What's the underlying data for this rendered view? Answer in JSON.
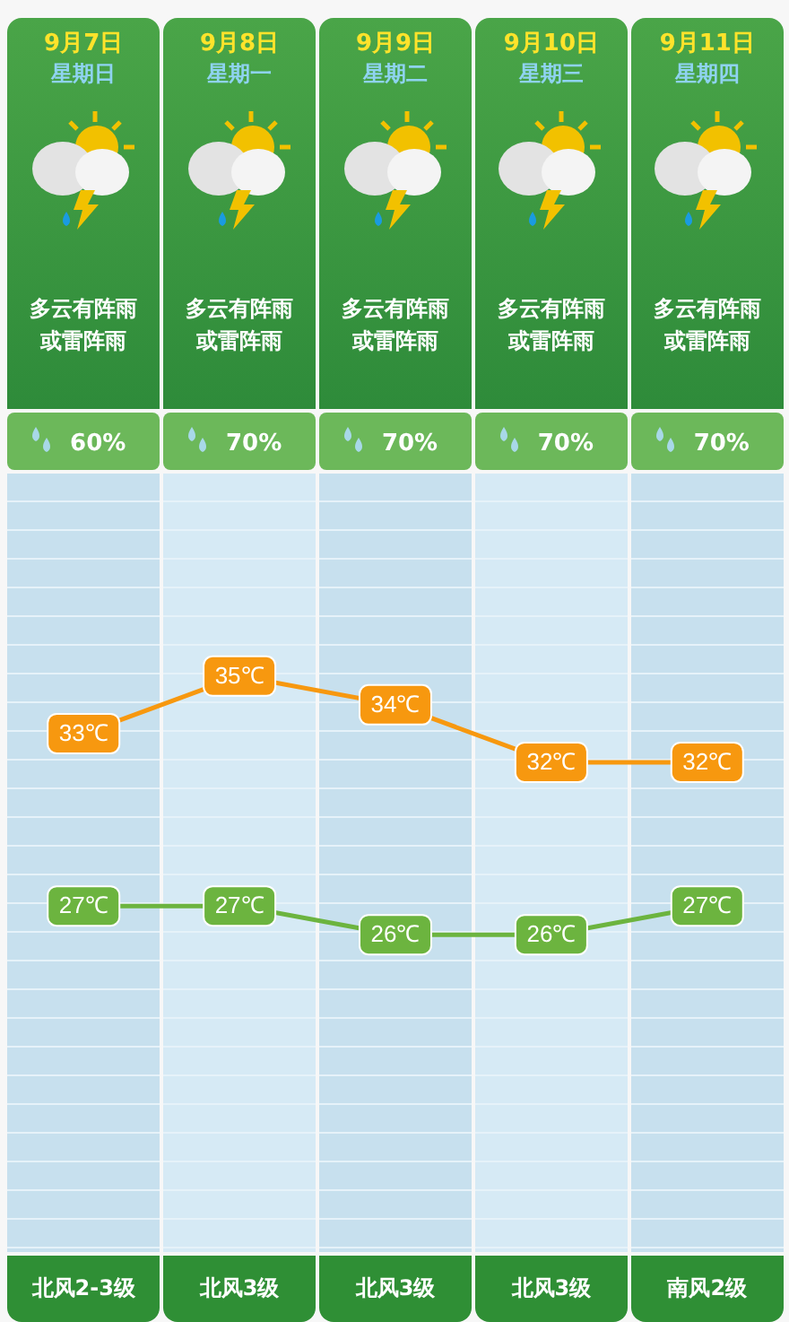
{
  "chart_data": {
    "type": "line",
    "categories": [
      "9月7日",
      "9月8日",
      "9月9日",
      "9月10日",
      "9月11日"
    ],
    "series": [
      {
        "color": "#f7980f",
        "marker": "square",
        "values": [
          33,
          35,
          34,
          32,
          32
        ],
        "value_labels": [
          "33℃",
          "35℃",
          "34℃",
          "32℃",
          "32℃"
        ]
      },
      {
        "color": "#6cb43f",
        "marker": "square",
        "values": [
          27,
          27,
          26,
          26,
          27
        ],
        "value_labels": [
          "27℃",
          "27℃",
          "26℃",
          "26℃",
          "27℃"
        ]
      }
    ],
    "annotations": [
      "星期日",
      "星期一",
      "星期二",
      "星期三",
      "星期四",
      "多云有阵雨或雷阵雨",
      "多云有阵雨或雷阵雨",
      "多云有阵雨或雷阵雨",
      "多云有阵雨或雷阵雨",
      "多云有阵雨或雷阵雨",
      "60%",
      "70%",
      "70%",
      "70%",
      "70%",
      "北风2-3级",
      "北风3级",
      "北风3级",
      "北风3级",
      "南风2级"
    ]
  }
}
